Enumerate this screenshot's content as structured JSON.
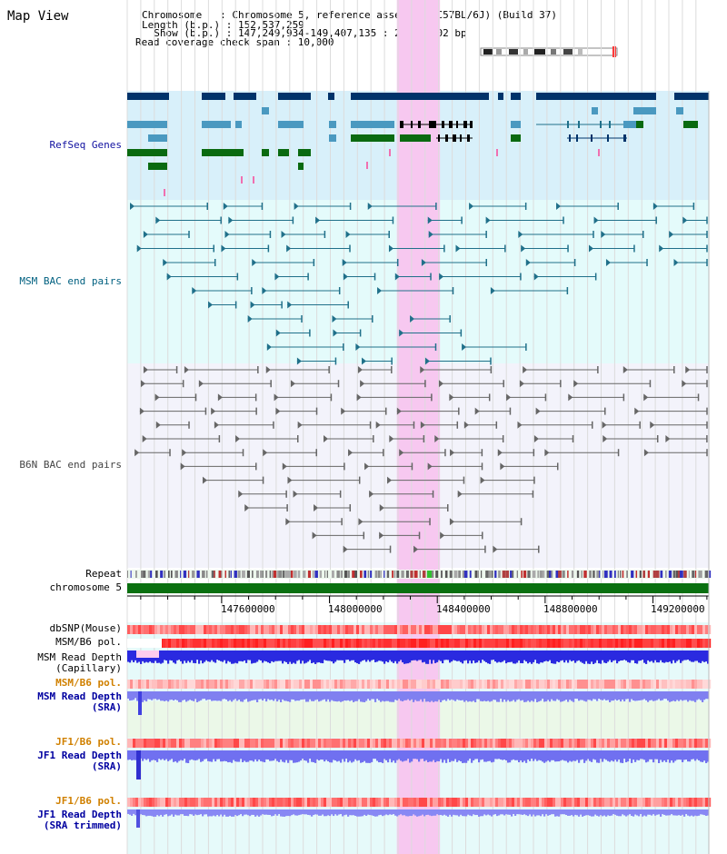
{
  "view_title": "Map View",
  "info": {
    "chromosome": "Chromosome   : Chromosome 5, reference assembly (C57BL/6J) (Build 37)",
    "length": "Length (b.p.) : 152,537,259",
    "show": "  Show (b.p.) : 147,249,934-149,407,135 : 2,157,202 bp",
    "span": "Read coverage check span : 10,000"
  },
  "tracks": {
    "refseq": "RefSeq Genes",
    "msm_bac": "MSM BAC end pairs",
    "b6n_bac": "B6N BAC end pairs",
    "repeat": "Repeat",
    "chromosome": "chromosome 5",
    "dbsnp": "dbSNP(Mouse)",
    "msm_b6_pol_1": "MSM/B6 pol.",
    "msm_depth_cap_1": "MSM Read Depth",
    "msm_depth_cap_2": "(Capillary)",
    "msm_b6_pol_2": "MSM/B6 pol.",
    "msm_depth_sra_1": "MSM Read Depth",
    "msm_depth_sra_2": "(SRA)",
    "jf1_b6_pol_1": "JF1/B6 pol.",
    "jf1_depth_sra_1": "JF1 Read Depth",
    "jf1_depth_sra_2": "(SRA)",
    "jf1_b6_pol_2": "JF1/B6 pol.",
    "jf1_depth_trim_1": "JF1 Read Depth",
    "jf1_depth_trim_2": "(SRA trimmed)"
  },
  "axis": {
    "range": [
      147249934,
      149407135
    ],
    "ticks": [
      {
        "value": 147600000,
        "label": "147600000"
      },
      {
        "value": 148000000,
        "label": "148000000"
      },
      {
        "value": 148400000,
        "label": "148400000"
      },
      {
        "value": 148800000,
        "label": "148800000"
      },
      {
        "value": 149200000,
        "label": "149200000"
      }
    ]
  },
  "highlight": {
    "start": 148250000,
    "end": 148410000
  },
  "colors": {
    "refseq_bg": "#d8f0fa",
    "msm_bg": "#e4fbfb",
    "b6n_bg": "#f3f3fb",
    "highlight": "#f7c8f0",
    "gene_dark": "#00336a",
    "gene_mid": "#4a99c0",
    "gene_green": "#0a6a10",
    "msm_line": "#20708a",
    "b6n_line": "#666666",
    "chrom_bar": "#0a7010",
    "label_refseq": "#1010a0",
    "label_msm": "#006080",
    "label_b6n": "#444444",
    "label_pol": "#d08000",
    "label_depth": "#0000a0"
  }
}
